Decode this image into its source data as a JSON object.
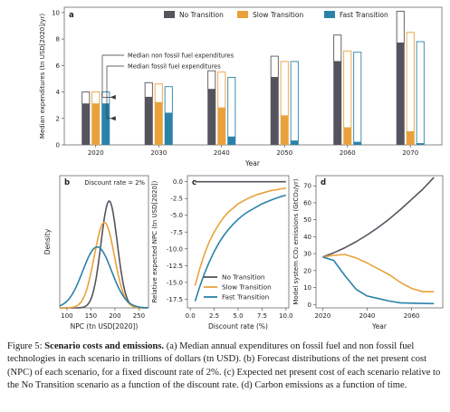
{
  "colors": {
    "no_transition": "#55545e",
    "slow_transition": "#e9a23b",
    "fast_transition": "#2a82a8",
    "axis": "#555555",
    "grid": "#e6e6e6"
  },
  "chart_data": [
    {
      "panel": "a",
      "type": "bar",
      "ylabel": "Median expenditures (tn USD[2020]/yr)",
      "xlabel": "Year",
      "ylim": [
        0,
        10.4
      ],
      "yticks": [
        0,
        2,
        4,
        6,
        8,
        10
      ],
      "categories": [
        "2020",
        "2030",
        "2040",
        "2050",
        "2060",
        "2070"
      ],
      "series": [
        {
          "name": "No Transition",
          "fossil": [
            3.1,
            3.6,
            4.2,
            5.1,
            6.3,
            7.7
          ],
          "nonfossil": [
            0.9,
            1.1,
            1.4,
            1.6,
            2.0,
            2.4
          ]
        },
        {
          "name": "Slow Transition",
          "fossil": [
            3.1,
            3.2,
            2.8,
            2.2,
            1.3,
            1.0
          ],
          "nonfossil": [
            0.9,
            1.4,
            2.7,
            4.1,
            5.8,
            7.5
          ]
        },
        {
          "name": "Fast Transition",
          "fossil": [
            3.1,
            2.4,
            0.6,
            0.3,
            0.2,
            0.1
          ],
          "nonfossil": [
            0.9,
            2.0,
            4.5,
            6.0,
            6.8,
            7.7
          ]
        }
      ],
      "annotations": [
        "Median non fossil fuel expenditures",
        "Median fossil fuel expenditures"
      ],
      "legend_position": "top"
    },
    {
      "panel": "b",
      "type": "line",
      "ylabel": "Density",
      "xlabel": "NPC (tn USD[2020])",
      "xlim": [
        85,
        270
      ],
      "xticks": [
        100,
        150,
        200,
        250
      ],
      "annotation": "Discount rate = 2%",
      "series": [
        {
          "name": "No Transition",
          "mean": 188,
          "sd": 17,
          "peak": 1.0
        },
        {
          "name": "Slow Transition",
          "mean": 178,
          "sd": 21,
          "peak": 0.8
        },
        {
          "name": "Fast Transition",
          "mean": 163,
          "sd": 30,
          "peak": 0.57
        }
      ]
    },
    {
      "panel": "c",
      "type": "line",
      "ylabel": "Relative expected NPC (tn USD[2020])",
      "xlabel": "Discount rate (%)",
      "xlim": [
        -0.3,
        10.3
      ],
      "ylim": [
        -18.8,
        0.9
      ],
      "xticks": [
        0.0,
        2.5,
        5.0,
        7.5,
        10.0
      ],
      "yticks": [
        0.0,
        -2.5,
        -5.0,
        -7.5,
        -10.0,
        -12.5,
        -15.0,
        -17.5
      ],
      "x": [
        0.5,
        1,
        1.5,
        2,
        2.5,
        3,
        3.5,
        4,
        4.5,
        5,
        5.5,
        6,
        6.5,
        7,
        7.5,
        8,
        8.5,
        9,
        9.5,
        10
      ],
      "series": [
        {
          "name": "No Transition",
          "values": [
            0,
            0,
            0,
            0,
            0,
            0,
            0,
            0,
            0,
            0,
            0,
            0,
            0,
            0,
            0,
            0,
            0,
            0,
            0,
            0
          ]
        },
        {
          "name": "Slow Transition",
          "values": [
            -15.5,
            -12.9,
            -10.7,
            -8.9,
            -7.5,
            -6.3,
            -5.3,
            -4.5,
            -3.9,
            -3.3,
            -2.9,
            -2.5,
            -2.2,
            -1.9,
            -1.7,
            -1.5,
            -1.3,
            -1.2,
            -1.05,
            -0.95
          ]
        },
        {
          "name": "Fast Transition",
          "values": [
            -17.8,
            -15.6,
            -13.6,
            -11.9,
            -10.4,
            -9.1,
            -8.0,
            -7.1,
            -6.3,
            -5.6,
            -5.0,
            -4.5,
            -4.1,
            -3.7,
            -3.3,
            -3.0,
            -2.7,
            -2.45,
            -2.2,
            -2.0
          ]
        }
      ],
      "legend_position": "bottom-right"
    },
    {
      "panel": "d",
      "type": "line",
      "ylabel": "Model system CO₂ emissions (GtCO₂/yr)",
      "xlabel": "Year",
      "xlim": [
        2017,
        2074
      ],
      "ylim": [
        -2,
        76
      ],
      "xticks": [
        2020,
        2040,
        2060
      ],
      "yticks": [
        0,
        10,
        20,
        30,
        40,
        50,
        60,
        70
      ],
      "x": [
        2020,
        2025,
        2030,
        2035,
        2040,
        2045,
        2050,
        2055,
        2060,
        2065,
        2070
      ],
      "series": [
        {
          "name": "No Transition",
          "values": [
            28,
            30.5,
            33.5,
            37,
            41,
            45.5,
            50.5,
            56,
            62,
            68,
            75
          ]
        },
        {
          "name": "Slow Transition",
          "values": [
            28,
            29,
            29.5,
            27.5,
            24.5,
            21,
            17.5,
            13,
            9.5,
            7.5,
            7.5
          ]
        },
        {
          "name": "Fast Transition",
          "values": [
            28,
            26,
            17,
            9,
            5,
            3.5,
            2,
            1,
            0.8,
            0.6,
            0.5
          ]
        }
      ]
    }
  ],
  "caption": {
    "label": "Figure 5:",
    "title": "Scenario costs and emissions.",
    "text": "(a) Median annual expenditures on fossil fuel and non fossil fuel technologies in each scenario in trillions of dollars (tn USD). (b) Forecast distributions of the net present cost (NPC) of each scenario, for a fixed discount rate of 2%. (c) Expected net present cost of each scenario relative to the No Transition scenario as a function of the discount rate. (d) Carbon emissions as a function of time."
  }
}
